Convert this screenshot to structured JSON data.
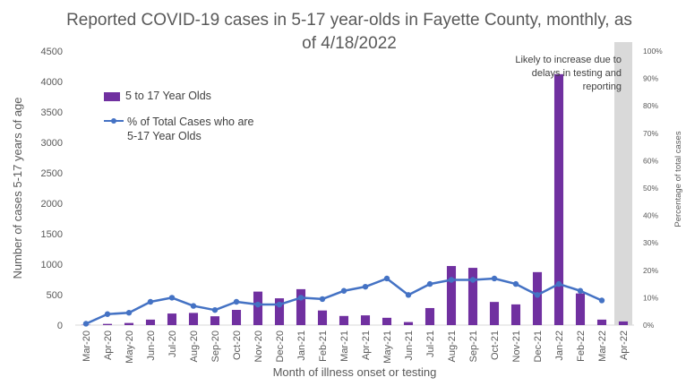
{
  "chart_data": {
    "type": "bar",
    "title": "Reported COVID-19 cases in 5-17 year-olds in Fayette County, monthly, as of 4/18/2022",
    "title_line1": "Reported COVID-19 cases in 5-17 year-olds in Fayette County, monthly, as",
    "title_line2": "of 4/18/2022",
    "xlabel": "Month of illness onset or testing",
    "ylabel": "Number of cases 5-17 years of age",
    "y2label": "Percentage of total cases",
    "ylim": [
      0,
      4500
    ],
    "y2lim": [
      0,
      100
    ],
    "y_ticks": [
      "0",
      "500",
      "1000",
      "1500",
      "2000",
      "2500",
      "3000",
      "3500",
      "4000",
      "4500"
    ],
    "y2_ticks": [
      "0%",
      "10%",
      "20%",
      "30%",
      "40%",
      "50%",
      "60%",
      "70%",
      "80%",
      "90%",
      "100%"
    ],
    "categories": [
      "Mar-20",
      "Apr-20",
      "May-20",
      "Jun-20",
      "Jul-20",
      "Aug-20",
      "Sep-20",
      "Oct-20",
      "Nov-20",
      "Dec-20",
      "Jan-21",
      "Feb-21",
      "Mar-21",
      "Apr-21",
      "May-21",
      "Jun-21",
      "Jul-21",
      "Aug-21",
      "Sep-21",
      "Oct-21",
      "Nov-21",
      "Dec-21",
      "Jan-22",
      "Feb-22",
      "Mar-22",
      "Apr-22"
    ],
    "grid": false,
    "legend_position": "left",
    "series": [
      {
        "name": "5 to 17 Year Olds",
        "kind": "bar",
        "axis": "left",
        "color": "#7030a0",
        "values": [
          5,
          20,
          35,
          90,
          190,
          200,
          145,
          250,
          550,
          440,
          590,
          240,
          150,
          160,
          120,
          50,
          280,
          970,
          940,
          380,
          340,
          870,
          4120,
          520,
          90,
          60
        ]
      },
      {
        "name": "% of Total Cases who are 5-17 Year Olds",
        "legend_line1": "% of Total Cases who are",
        "legend_line2": "5-17 Year Olds",
        "kind": "line",
        "axis": "right",
        "color": "#4472c4",
        "values": [
          0.5,
          4.0,
          4.5,
          8.5,
          10.0,
          7.0,
          5.5,
          8.5,
          7.5,
          7.5,
          10.0,
          9.5,
          12.5,
          14.0,
          17.0,
          11.0,
          15.0,
          16.5,
          16.5,
          17.0,
          15.0,
          11.0,
          15.0,
          12.5,
          9.0,
          null
        ]
      }
    ],
    "shaded_region": {
      "category": "Apr-22",
      "color": "#d9d9d9"
    },
    "annotation": {
      "line1": "Likely to increase due to",
      "line2": "delays in testing and",
      "line3": "reporting"
    },
    "axis_color": "#d9d9d9",
    "text_color": "#595959"
  }
}
